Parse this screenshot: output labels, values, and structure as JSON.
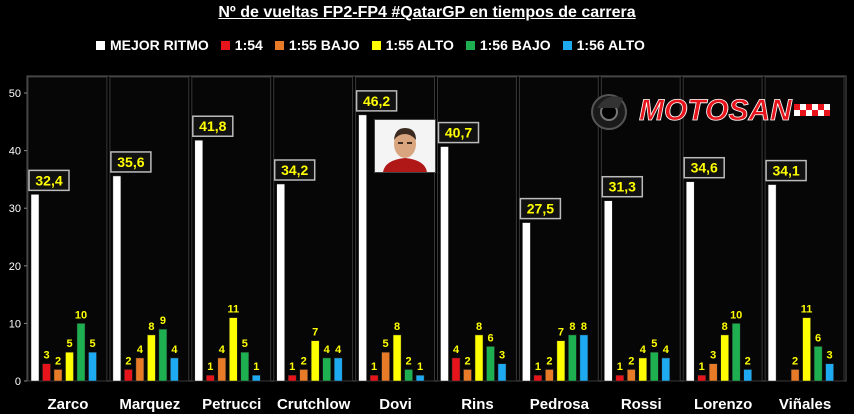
{
  "title": "Nº de vueltas FP2-FP4 #QatarGP en tiempos de carrera",
  "logo_text": "MOTOSAN",
  "chart_data": {
    "type": "bar",
    "title": "Nº de vueltas FP2-FP4 #QatarGP en tiempos de carrera",
    "categories": [
      "Zarco",
      "Marquez",
      "Petrucci",
      "Crutchlow",
      "Dovi",
      "Rins",
      "Pedrosa",
      "Rossi",
      "Lorenzo",
      "Viñales"
    ],
    "ylim": [
      0,
      50
    ],
    "yticks": [
      0,
      10,
      20,
      30,
      40,
      50
    ],
    "grid": false,
    "legend_position": "top",
    "series": [
      {
        "name": "MEJOR RITMO",
        "color": "#ffffff",
        "values": [
          32.4,
          35.6,
          41.8,
          34.2,
          46.2,
          40.7,
          27.5,
          31.3,
          34.6,
          34.1
        ],
        "labels": [
          "32,4",
          "35,6",
          "41,8",
          "34,2",
          "46,2",
          "40,7",
          "27,5",
          "31,3",
          "34,6",
          "34,1"
        ]
      },
      {
        "name": "1:54",
        "color": "#e8141c",
        "values": [
          3,
          2,
          1,
          1,
          1,
          4,
          1,
          1,
          1,
          0
        ],
        "labels": [
          "3",
          "2",
          "1",
          "1",
          "1",
          "4",
          "1",
          "1",
          "1",
          ""
        ]
      },
      {
        "name": "1:55 BAJO",
        "color": "#e87b28",
        "values": [
          2,
          4,
          4,
          2,
          5,
          2,
          2,
          2,
          3,
          2
        ],
        "labels": [
          "2",
          "4",
          "4",
          "2",
          "5",
          "2",
          "2",
          "2",
          "3",
          "2"
        ]
      },
      {
        "name": "1:55 ALTO",
        "color": "#ffff00",
        "values": [
          5,
          8,
          11,
          7,
          8,
          8,
          7,
          4,
          8,
          11
        ],
        "labels": [
          "5",
          "8",
          "11",
          "7",
          "8",
          "8",
          "7",
          "4",
          "8",
          "11"
        ]
      },
      {
        "name": "1:56 BAJO",
        "color": "#1eb050",
        "values": [
          10,
          9,
          5,
          4,
          2,
          6,
          8,
          5,
          10,
          6
        ],
        "labels": [
          "10",
          "9",
          "5",
          "4",
          "2",
          "6",
          "8",
          "5",
          "10",
          "6"
        ]
      },
      {
        "name": "1:56 ALTO",
        "color": "#1eaaf0",
        "values": [
          5,
          4,
          1,
          4,
          1,
          3,
          8,
          4,
          2,
          3
        ],
        "labels": [
          "5",
          "4",
          "1",
          "4",
          "1",
          "3",
          "8",
          "4",
          "2",
          "3"
        ]
      }
    ]
  }
}
